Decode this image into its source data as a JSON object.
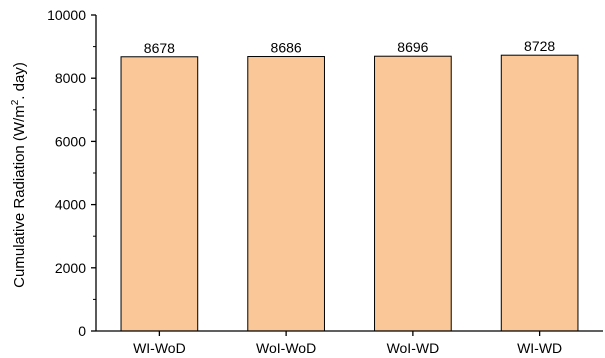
{
  "chart_data": {
    "type": "bar",
    "categories": [
      "WI-WoD",
      "WoI-WoD",
      "WoI-WD",
      "WI-WD"
    ],
    "values": [
      8678,
      8686,
      8696,
      8728
    ],
    "value_labels": [
      "8678",
      "8686",
      "8696",
      "8728"
    ],
    "title": "",
    "xlabel": "",
    "ylabel": "Cumulative Radiation (W/m",
    "ylabel_superscript": "2",
    "ylabel_suffix": ". day)",
    "ylim": [
      0,
      10000
    ],
    "yticks": [
      0,
      2000,
      4000,
      6000,
      8000,
      10000
    ],
    "ytick_labels": [
      "0",
      "2000",
      "4000",
      "6000",
      "8000",
      "10000"
    ],
    "grid": false,
    "legend": "none",
    "bar_color": "#fac898",
    "bar_edge_color": "#000000"
  }
}
